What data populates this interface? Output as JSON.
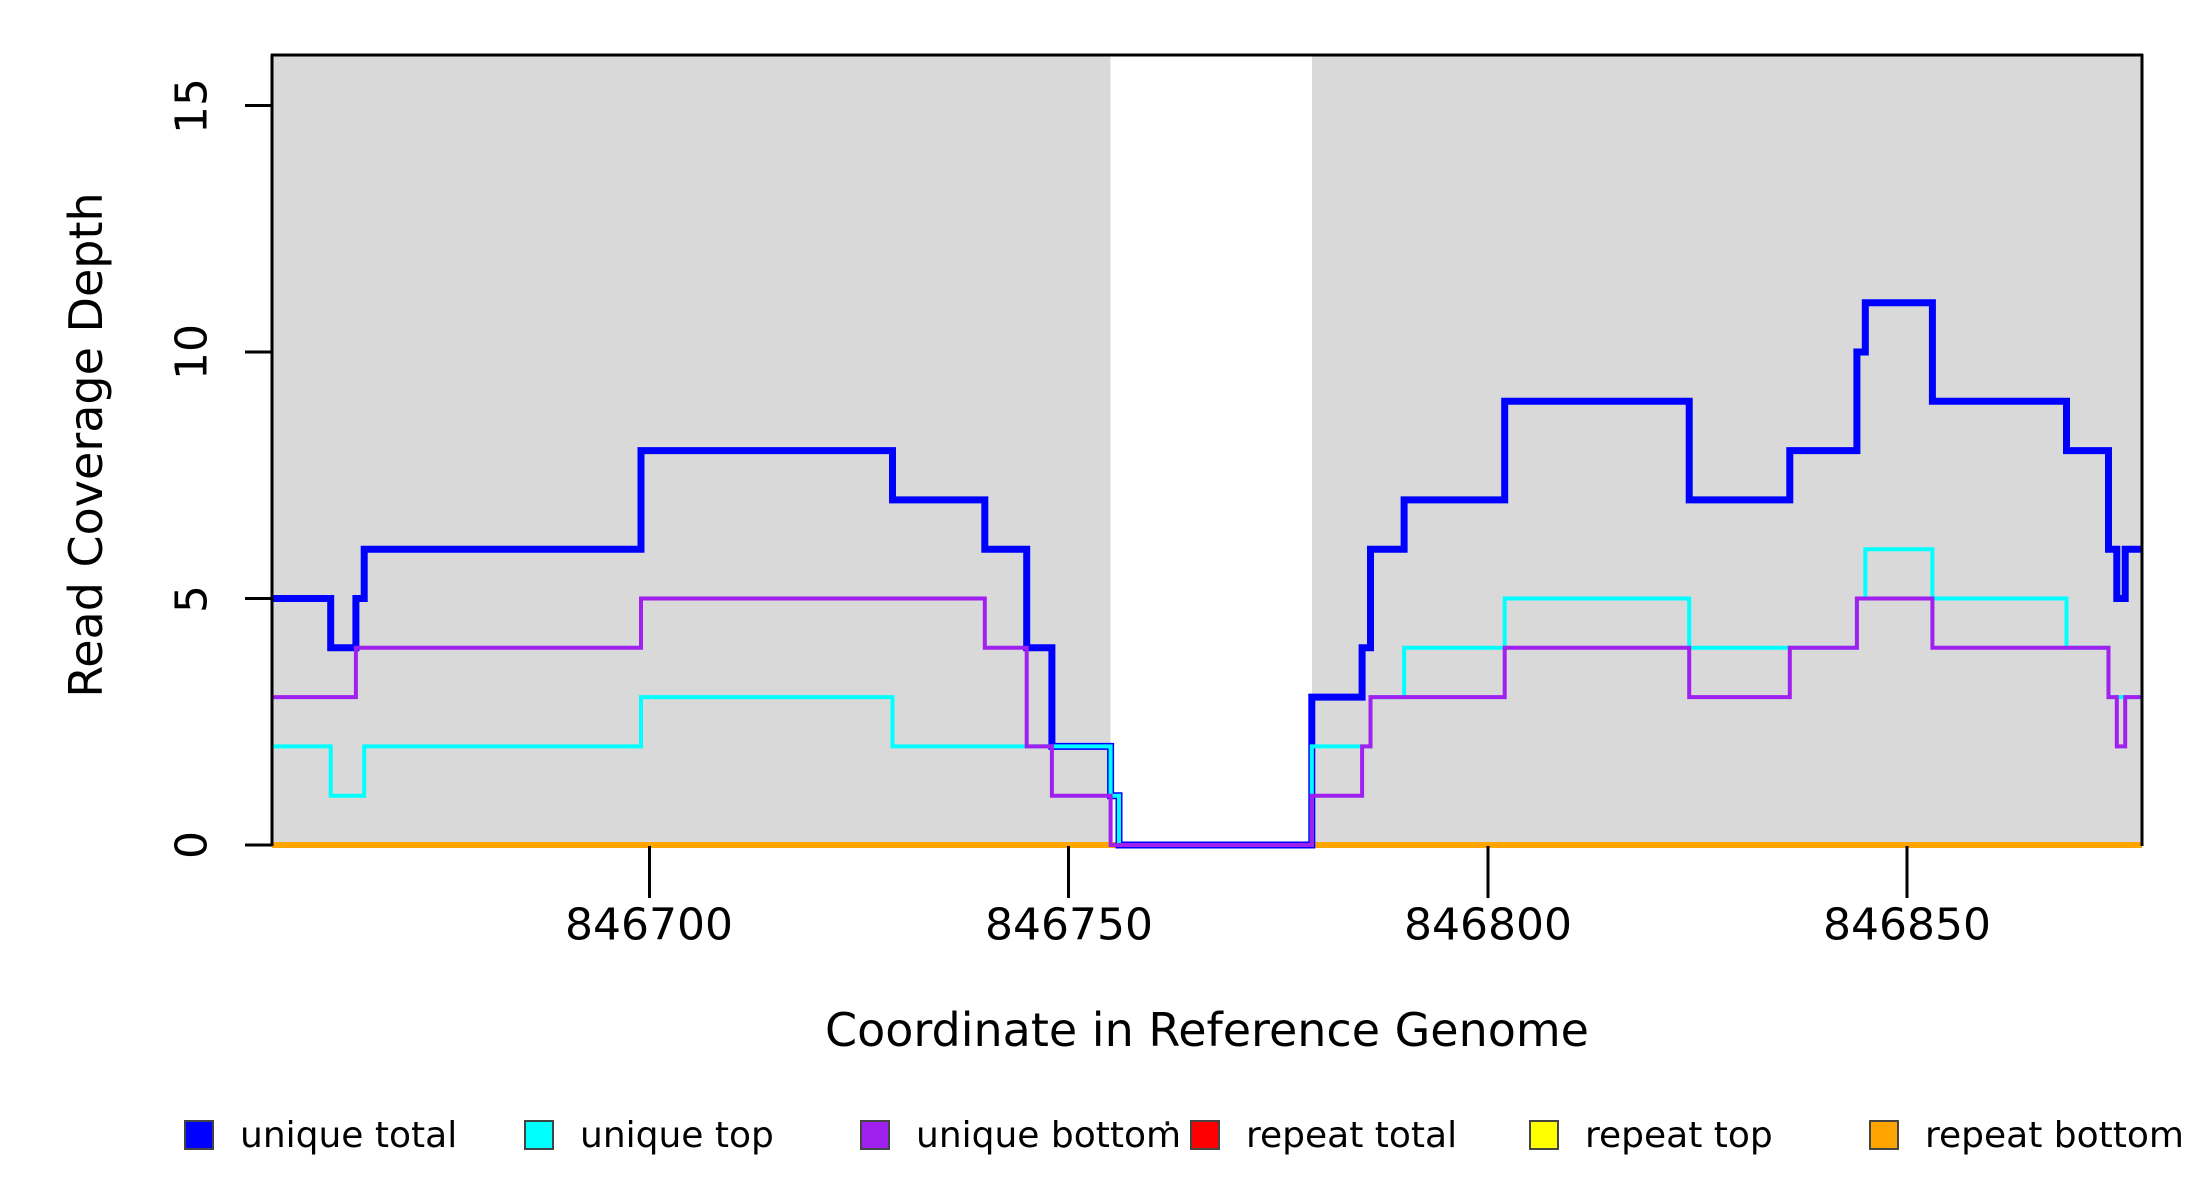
{
  "window": {
    "background": "#ffffff"
  },
  "axes": {
    "y_title": "Read Coverage Depth",
    "x_title": "Coordinate in Reference Genome",
    "y_tick_labels": [
      "0",
      "5",
      "10",
      "15"
    ],
    "x_tick_labels": [
      "846700",
      "846750",
      "846800",
      "846850"
    ]
  },
  "chart_data": {
    "type": "line",
    "subtype": "step",
    "title": "",
    "xlabel": "Coordinate in Reference Genome",
    "ylabel": "Read Coverage Depth",
    "xlim": [
      846655,
      846878
    ],
    "ylim": [
      0,
      16
    ],
    "xticks": [
      846700,
      846750,
      846800,
      846850
    ],
    "yticks": [
      0,
      5,
      10,
      15
    ],
    "grid": false,
    "legend_position": "bottom",
    "plot_background": "#ffffff",
    "highlight_regions": [
      {
        "x0": 846655,
        "x1": 846755,
        "color": "#d9d9d9"
      },
      {
        "x0": 846779,
        "x1": 846878,
        "color": "#d9d9d9"
      }
    ],
    "draw_order": [
      "repeat total",
      "repeat top",
      "repeat bottom",
      "unique total",
      "unique top",
      "unique bottom"
    ],
    "series": [
      {
        "name": "unique total",
        "color": "#0000FF",
        "width": 7,
        "steps": [
          [
            846655,
            5
          ],
          [
            846662,
            4
          ],
          [
            846665,
            5
          ],
          [
            846666,
            6
          ],
          [
            846699,
            8
          ],
          [
            846729,
            7
          ],
          [
            846740,
            6
          ],
          [
            846745,
            4
          ],
          [
            846748,
            2
          ],
          [
            846755,
            1
          ],
          [
            846756,
            0
          ],
          [
            846779,
            3
          ],
          [
            846785,
            4
          ],
          [
            846786,
            6
          ],
          [
            846790,
            7
          ],
          [
            846802,
            9
          ],
          [
            846824,
            7
          ],
          [
            846836,
            8
          ],
          [
            846844,
            10
          ],
          [
            846845,
            11
          ],
          [
            846853,
            9
          ],
          [
            846869,
            8
          ],
          [
            846874,
            6
          ],
          [
            846875,
            5
          ],
          [
            846876,
            6
          ]
        ]
      },
      {
        "name": "unique top",
        "color": "#00FFFF",
        "width": 4,
        "steps": [
          [
            846655,
            2
          ],
          [
            846662,
            1
          ],
          [
            846666,
            2
          ],
          [
            846699,
            3
          ],
          [
            846729,
            2
          ],
          [
            846755,
            1
          ],
          [
            846756,
            0
          ],
          [
            846779,
            2
          ],
          [
            846786,
            3
          ],
          [
            846790,
            4
          ],
          [
            846802,
            5
          ],
          [
            846824,
            4
          ],
          [
            846844,
            5
          ],
          [
            846845,
            6
          ],
          [
            846853,
            5
          ],
          [
            846869,
            4
          ],
          [
            846874,
            3
          ]
        ]
      },
      {
        "name": "unique bottom",
        "color": "#A020F0",
        "width": 4,
        "steps": [
          [
            846655,
            3
          ],
          [
            846665,
            4
          ],
          [
            846699,
            5
          ],
          [
            846740,
            4
          ],
          [
            846745,
            2
          ],
          [
            846748,
            1
          ],
          [
            846755,
            0
          ],
          [
            846779,
            1
          ],
          [
            846785,
            2
          ],
          [
            846786,
            3
          ],
          [
            846802,
            4
          ],
          [
            846824,
            3
          ],
          [
            846836,
            4
          ],
          [
            846844,
            5
          ],
          [
            846853,
            4
          ],
          [
            846874,
            3
          ],
          [
            846875,
            2
          ],
          [
            846876,
            3
          ]
        ]
      },
      {
        "name": "repeat total",
        "color": "#FF0000",
        "width": 5,
        "steps": [
          [
            846655,
            0
          ]
        ]
      },
      {
        "name": "repeat top",
        "color": "#FFFF00",
        "width": 5,
        "steps": [
          [
            846655,
            0
          ]
        ]
      },
      {
        "name": "repeat bottom",
        "color": "#FFA500",
        "width": 6,
        "steps": [
          [
            846655,
            0
          ]
        ]
      }
    ]
  },
  "legend": {
    "items": [
      {
        "label": "unique total",
        "color": "#0000FF"
      },
      {
        "label": "unique top",
        "color": "#00FFFF"
      },
      {
        "label": "unique bottom",
        "color": "#A020F0"
      },
      {
        "label": "repeat total",
        "color": "#FF0000"
      },
      {
        "label": "repeat top",
        "color": "#FFFF00"
      },
      {
        "label": "repeat bottom",
        "color": "#FFA500"
      }
    ],
    "artifact_dot": "·"
  }
}
